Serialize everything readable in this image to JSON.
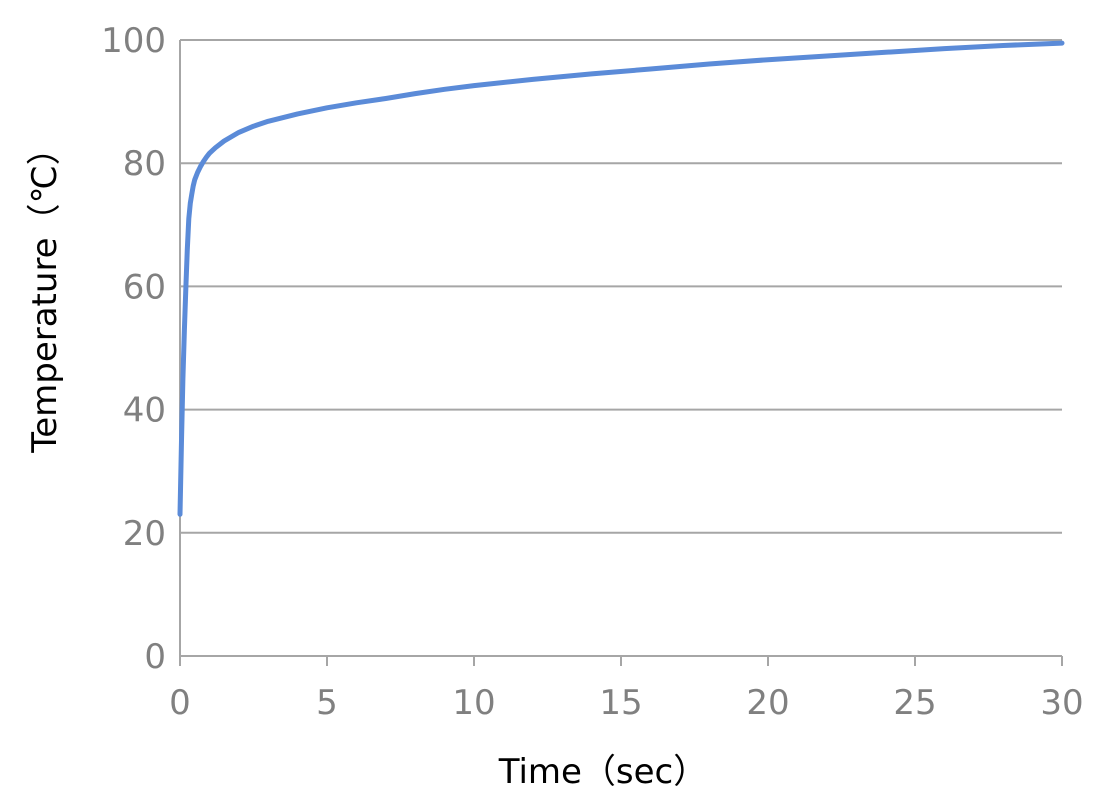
{
  "chart_data": {
    "type": "line",
    "title": "",
    "xlabel": "Time（sec）",
    "ylabel": "Temperature（℃）",
    "xlim": [
      0,
      30
    ],
    "ylim": [
      0,
      100
    ],
    "x_ticks": [
      0,
      5,
      10,
      15,
      20,
      25,
      30
    ],
    "y_ticks": [
      0,
      20,
      40,
      60,
      80,
      100
    ],
    "grid": {
      "horizontal": true,
      "vertical": false
    },
    "legend": "none",
    "series": [
      {
        "color": "#5b8bd8",
        "x": [
          0,
          0.05,
          0.1,
          0.15,
          0.2,
          0.25,
          0.3,
          0.35,
          0.4,
          0.45,
          0.5,
          0.6,
          0.7,
          0.8,
          0.9,
          1.0,
          1.2,
          1.5,
          2.0,
          2.5,
          3.0,
          4.0,
          5.0,
          6.0,
          7.0,
          8.0,
          9.0,
          10.0,
          12.0,
          14.0,
          16.0,
          18.0,
          20.0,
          22.0,
          24.0,
          26.0,
          28.0,
          30.0
        ],
        "y": [
          23,
          35,
          45,
          53,
          60,
          66,
          71,
          73.5,
          75,
          76.3,
          77.3,
          78.5,
          79.5,
          80.3,
          81,
          81.6,
          82.5,
          83.6,
          85,
          86,
          86.8,
          88,
          89,
          89.8,
          90.5,
          91.3,
          92,
          92.6,
          93.6,
          94.5,
          95.3,
          96.1,
          96.8,
          97.4,
          98,
          98.6,
          99.1,
          99.5
        ]
      }
    ]
  }
}
